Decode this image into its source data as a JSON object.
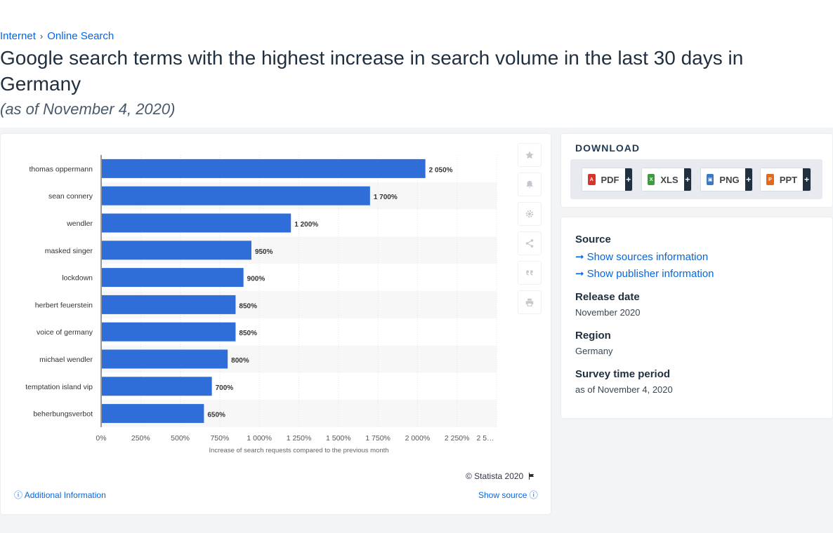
{
  "breadcrumb": [
    "Internet",
    "Online Search"
  ],
  "title": "Google search terms with the highest increase in search volume in the last 30 days in Germany",
  "subtitle": "(as of November 4, 2020)",
  "chart_data": {
    "type": "bar",
    "orientation": "horizontal",
    "categories": [
      "thomas oppermann",
      "sean connery",
      "wendler",
      "masked singer",
      "lockdown",
      "herbert feuerstein",
      "voice of germany",
      "michael wendler",
      "temptation island vip",
      "beherbungsverbot"
    ],
    "values": [
      2050,
      1700,
      1200,
      950,
      900,
      850,
      850,
      800,
      700,
      650
    ],
    "data_labels": [
      "2 050%",
      "1 700%",
      "1 200%",
      "950%",
      "900%",
      "850%",
      "850%",
      "800%",
      "700%",
      "650%"
    ],
    "xlabel": "Increase of search requests compared to the previous month",
    "ylabel": "",
    "xlim": [
      0,
      2500
    ],
    "x_ticks": [
      0,
      250,
      500,
      750,
      1000,
      1250,
      1500,
      1750,
      2000,
      2250,
      2500
    ],
    "x_tick_labels": [
      "0%",
      "250%",
      "500%",
      "750%",
      "1 000%",
      "1 250%",
      "1 500%",
      "1 750%",
      "2 000%",
      "2 250%",
      "2 5…"
    ],
    "bar_color": "#2f6ed8",
    "grid": true
  },
  "chart_footer": {
    "copyright": "© Statista 2020",
    "additional_info": "Additional Information",
    "show_source": "Show source"
  },
  "tools": [
    "star-icon",
    "bell-icon",
    "gear-icon",
    "share-icon",
    "quote-icon",
    "print-icon"
  ],
  "download": {
    "title": "DOWNLOAD",
    "buttons": [
      {
        "label": "PDF",
        "color": "#d9342b"
      },
      {
        "label": "XLS",
        "color": "#3f9b3f"
      },
      {
        "label": "PNG",
        "color": "#3b79c4"
      },
      {
        "label": "PPT",
        "color": "#e06a1f"
      }
    ],
    "plus": "+"
  },
  "info": {
    "source_heading": "Source",
    "sources_link": "Show sources information",
    "publisher_link": "Show publisher information",
    "release_heading": "Release date",
    "release_value": "November 2020",
    "region_heading": "Region",
    "region_value": "Germany",
    "period_heading": "Survey time period",
    "period_value": "as of November 4, 2020"
  }
}
